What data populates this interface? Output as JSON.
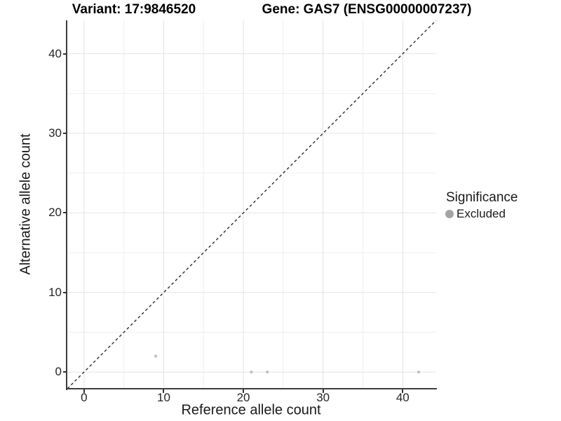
{
  "titles": {
    "variant": "Variant: 17:9846520",
    "gene": "Gene: GAS7 (ENSG00000007237)"
  },
  "legend": {
    "title": "Significance",
    "items": [
      {
        "label": "Excluded",
        "key_color": "#a4a4a4"
      }
    ]
  },
  "chart_data": {
    "type": "scatter",
    "title": "Variant: 17:9846520  /  Gene: GAS7 (ENSG00000007237)",
    "xlabel": "Reference allele count",
    "ylabel": "Alternative allele count",
    "xlim": [
      -2.1,
      44.2
    ],
    "ylim": [
      -2.1,
      44.2
    ],
    "x_ticks": [
      0,
      10,
      20,
      30,
      40
    ],
    "y_ticks": [
      0,
      10,
      20,
      30,
      40
    ],
    "x_minor": [
      5,
      15,
      25,
      35
    ],
    "y_minor": [
      5,
      15,
      25,
      35
    ],
    "grid": "major+minor",
    "legend_position": "right",
    "series": [
      {
        "name": "Excluded",
        "color": "#c3c3c3",
        "point_radius": 2.2,
        "points": [
          [
            9,
            2
          ],
          [
            21,
            0
          ],
          [
            23,
            0
          ],
          [
            42,
            0
          ]
        ]
      }
    ],
    "reference_line": {
      "type": "identity",
      "style": "dashed",
      "color": "#2e2e2e"
    }
  },
  "colors": {
    "grid_major": "#e4e4e4",
    "grid_minor": "#efefef",
    "axis_line": "#3c3c3c",
    "tick": "#333333",
    "background": "#ffffff"
  }
}
